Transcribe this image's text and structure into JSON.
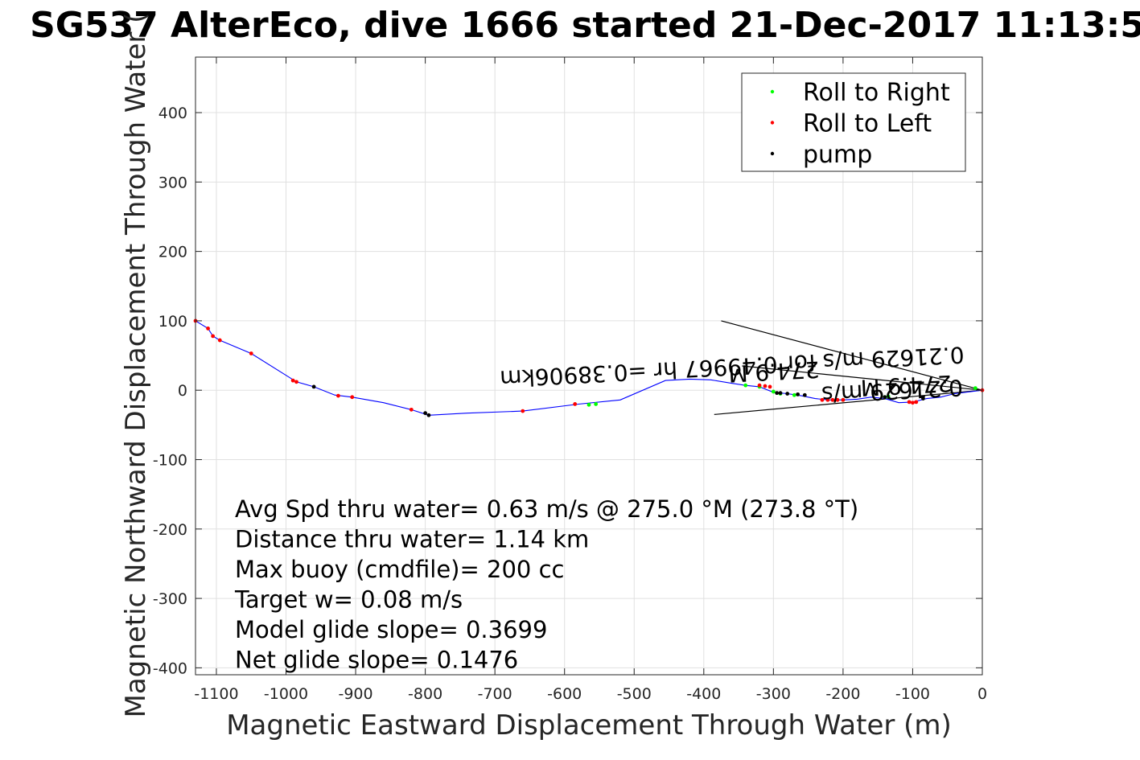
{
  "chart_data": {
    "type": "line",
    "title": "SG537 AlterEco, dive 1666 started 21-Dec-2017 11:13:5",
    "xlabel": "Magnetic Eastward Displacement Through Water (m)",
    "ylabel": "Magnetic Northward Displacement Through Water (",
    "xlim": [
      -1130,
      0
    ],
    "ylim": [
      -410,
      480
    ],
    "xticks": [
      -1100,
      -1000,
      -900,
      -800,
      -700,
      -600,
      -500,
      -400,
      -300,
      -200,
      -100,
      0
    ],
    "yticks": [
      -400,
      -300,
      -200,
      -100,
      0,
      100,
      200,
      300,
      400
    ],
    "grid": true,
    "legend_position": "top-right",
    "colors": {
      "track": "#0000ff",
      "roll_right": "#00ff00",
      "roll_left": "#ff0000",
      "pump": "#000000",
      "grid": "#e0e0e0",
      "axes": "#262626"
    },
    "track": {
      "x": [
        0,
        -40,
        -60,
        -80,
        -100,
        -120,
        -140,
        -160,
        -180,
        -200,
        -220,
        -240,
        -260,
        -280,
        -300,
        -320,
        -340,
        -360,
        -390,
        -420,
        -455,
        -520,
        -580,
        -660,
        -740,
        -795,
        -820,
        -860,
        -905,
        -930,
        -960,
        -985,
        -1050,
        -1095,
        -1105,
        -1112,
        -1130
      ],
      "y": [
        0,
        -5,
        -10,
        -12,
        -17,
        -18,
        -12,
        -10,
        -13,
        -14,
        -14,
        -12,
        -8,
        -5,
        -3,
        5,
        7,
        10,
        15,
        16,
        14,
        -14,
        -20,
        -30,
        -33,
        -36,
        -28,
        -18,
        -10,
        -7,
        5,
        12,
        53,
        72,
        78,
        89,
        100
      ]
    },
    "series": [
      {
        "name": "Roll to Right",
        "x": [
          -10,
          -140,
          -135,
          -200,
          -270,
          -290,
          -300,
          -320,
          -340,
          -555,
          -565
        ],
        "y": [
          3,
          -10,
          -9,
          -14,
          -7,
          -5,
          -2,
          5,
          7,
          -20,
          -21
        ]
      },
      {
        "name": "Roll to Left",
        "x": [
          0,
          -95,
          -100,
          -105,
          -200,
          -208,
          -215,
          -222,
          -230,
          -305,
          -312,
          -320,
          -660,
          -585,
          -820,
          -905,
          -925,
          -985,
          -990,
          -1050,
          -1095,
          -1105,
          -1112,
          -1130
        ],
        "y": [
          0,
          -17,
          -18,
          -17,
          -14,
          -14,
          -14,
          -14,
          -14,
          5,
          6,
          7,
          -30,
          -20,
          -28,
          -10,
          -8,
          12,
          14,
          53,
          72,
          78,
          89,
          100
        ]
      },
      {
        "name": "pump",
        "x": [
          -85,
          -140,
          -255,
          -265,
          -280,
          -290,
          -295,
          -800,
          -795,
          -960
        ],
        "y": [
          -12,
          -10,
          -7,
          -6,
          -5,
          -4,
          -4,
          -33,
          -36,
          5
        ]
      }
    ],
    "annotations": [
      {
        "text": "0.21629 m/s for 0.49967 hr =0.38906km",
        "x": -360,
        "y": 45,
        "rotation": 177
      },
      {
        "text": "274.9 M",
        "x": -300,
        "y": 38,
        "rotation": 177
      },
      {
        "text": "0.21629 m/s",
        "x": -130,
        "y": 10,
        "rotation": 177
      },
      {
        "text": "274.9 M",
        "x": -110,
        "y": 18,
        "rotation": 177
      }
    ],
    "guide_lines": [
      {
        "x": [
          0,
          -375
        ],
        "y": [
          0,
          100
        ]
      },
      {
        "x": [
          0,
          -385
        ],
        "y": [
          0,
          -35
        ]
      },
      {
        "x": [
          0,
          -345
        ],
        "y": [
          0,
          35
        ]
      }
    ],
    "stats": [
      "Avg Spd thru water=  0.63 m/s @ 275.0 °M (273.8 °T)",
      "Distance thru water=  1.14 km",
      "Max buoy (cmdfile)= 200 cc",
      "Target w= 0.08 m/s",
      "Model glide slope= 0.3699",
      "Net glide slope= 0.1476"
    ]
  }
}
